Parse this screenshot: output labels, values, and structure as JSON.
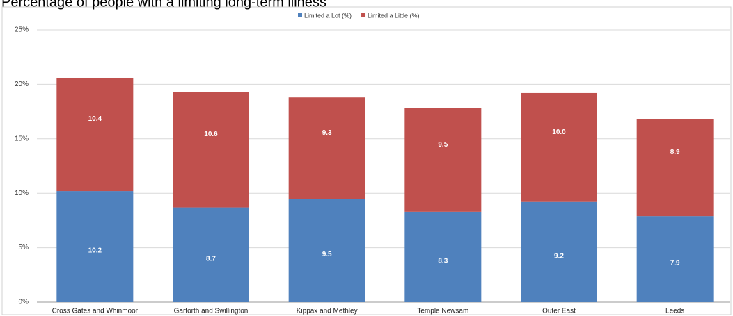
{
  "chart_data": {
    "type": "stacked_bar",
    "title": "Percentage of people with a limiting long-term illness",
    "categories": [
      "Cross Gates and Whinmoor",
      "Garforth and Swillington",
      "Kippax and Methley",
      "Temple Newsam",
      "Outer East",
      "Leeds"
    ],
    "series": [
      {
        "name": "Limited a Lot (%)",
        "color": "#4f81bd",
        "values": [
          10.2,
          8.7,
          9.5,
          8.3,
          9.2,
          7.9
        ]
      },
      {
        "name": "Limited a Little (%)",
        "color": "#c0504d",
        "values": [
          10.4,
          10.6,
          9.3,
          9.5,
          10.0,
          8.9
        ],
        "value_labels": [
          "10.4",
          "10.6",
          "9.3",
          "9.5",
          "10.0",
          "8.9"
        ]
      }
    ],
    "ylim": [
      0,
      25
    ],
    "yticks": [
      {
        "value": 0,
        "label": "0%"
      },
      {
        "value": 5,
        "label": "5%"
      },
      {
        "value": 10,
        "label": "10%"
      },
      {
        "value": 15,
        "label": "15%"
      },
      {
        "value": 20,
        "label": "20%"
      },
      {
        "value": 25,
        "label": "25%"
      }
    ],
    "grid": true,
    "legend": "top"
  }
}
